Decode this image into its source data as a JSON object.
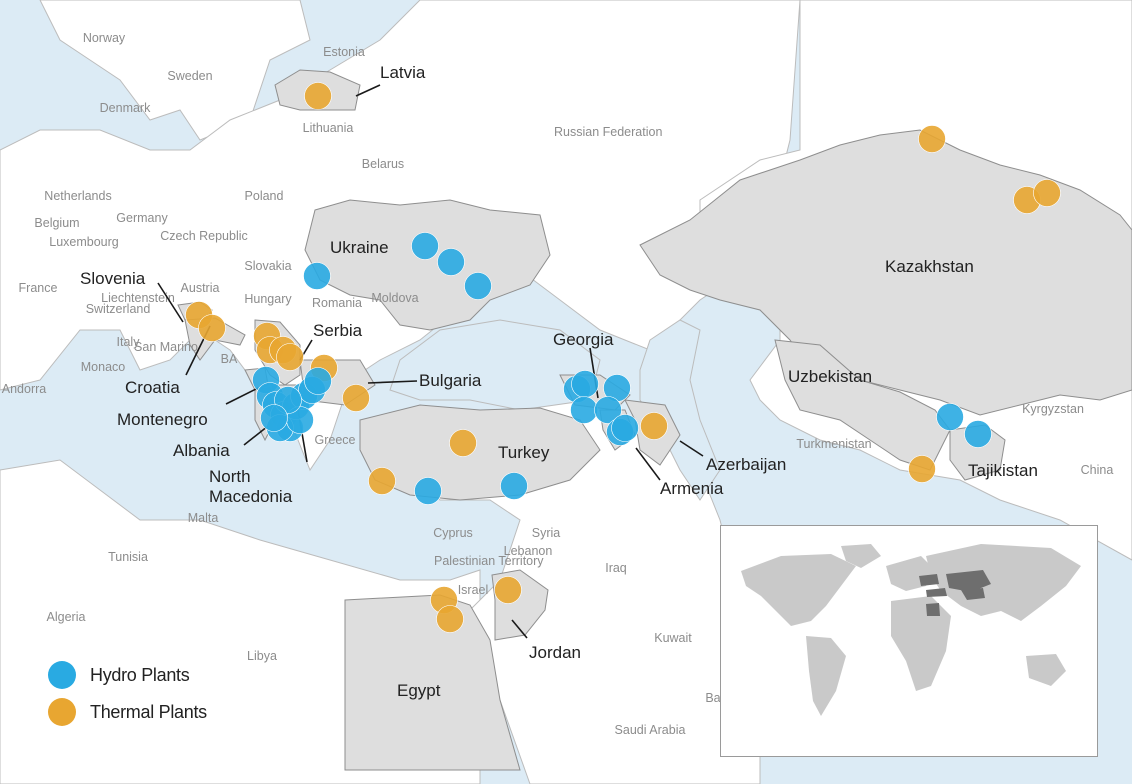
{
  "colors": {
    "sea": "#dcebf5",
    "land": "#ffffff",
    "highlight": "#dedede",
    "border": "#8e8e8e",
    "hydro": "#29aae2",
    "thermal": "#e8a631",
    "label_dark": "#222222",
    "label_light": "#8c8c8c"
  },
  "icons": {
    "hydro": "hydro-plant-circle-icon",
    "thermal": "thermal-plant-circle-icon"
  },
  "background_labels": [
    "Norway",
    "Sweden",
    "Estonia",
    "Denmark",
    "Lithuania",
    "Russian Federation",
    "Belarus",
    "Netherlands",
    "Germany",
    "Poland",
    "Belgium",
    "Luxembourg",
    "Czech Republic",
    "Slovakia",
    "France",
    "Liechtenstein",
    "Switzerland",
    "Austria",
    "Hungary",
    "Romania",
    "Moldova",
    "Italy",
    "San Marino",
    "Monaco",
    "BA",
    "Andorra",
    "Greece",
    "Malta",
    "Tunisia",
    "Algeria",
    "Libya",
    "Cyprus",
    "Syria",
    "Lebanon",
    "Palestinian Territory",
    "Israel",
    "Iraq",
    "Kuwait",
    "Saudi Arabia",
    "Turkmenistan",
    "Kyrgyzstan",
    "China",
    "Ba"
  ],
  "highlighted_countries": [
    "Latvia",
    "Ukraine",
    "Slovenia",
    "Serbia",
    "Croatia",
    "Bulgaria",
    "Montenegro",
    "Albania",
    "North Macedonia",
    "Turkey",
    "Georgia",
    "Armenia",
    "Azerbaijan",
    "Kazakhstan",
    "Uzbekistan",
    "Tajikistan",
    "Egypt",
    "Jordan"
  ],
  "legend": {
    "hydro": "Hydro Plants",
    "thermal": "Thermal Plants"
  }
}
